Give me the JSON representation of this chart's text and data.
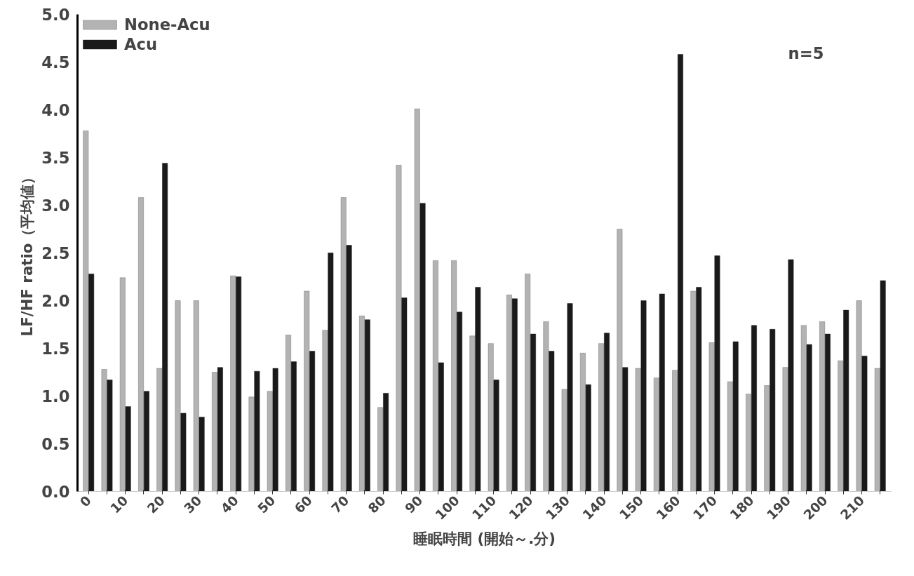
{
  "chart_data": {
    "type": "bar",
    "ylabel": "LF/HF ratio（平均値）",
    "xlabel": "睡眠時間 (開始～.分)",
    "annotations": [
      "n=5"
    ],
    "categories": [
      "0",
      null,
      "10",
      null,
      "20",
      null,
      "30",
      null,
      "40",
      null,
      "50",
      null,
      "60",
      null,
      "70",
      null,
      "80",
      null,
      "90",
      null,
      "100",
      null,
      "110",
      null,
      "120",
      null,
      "130",
      null,
      "140",
      null,
      "150",
      null,
      "160",
      null,
      "170",
      null,
      "180",
      null,
      "190",
      null,
      "200",
      null,
      "210",
      null
    ],
    "series": [
      {
        "name": "None-Acu",
        "color": "#b3b3b3",
        "values": [
          3.78,
          1.28,
          2.24,
          3.08,
          1.29,
          2.0,
          2.0,
          1.25,
          2.26,
          0.99,
          1.05,
          1.64,
          2.1,
          1.69,
          3.08,
          1.84,
          0.88,
          3.42,
          4.01,
          2.42,
          2.42,
          1.63,
          1.55,
          2.06,
          2.28,
          1.78,
          1.07,
          1.45,
          1.55,
          2.75,
          1.29,
          1.19,
          1.27,
          2.1,
          1.56,
          1.15,
          1.02,
          1.11,
          1.3,
          1.74,
          1.78,
          1.37,
          2.0,
          1.29
        ]
      },
      {
        "name": "Acu",
        "color": "#1a1a1a",
        "values": [
          2.28,
          1.17,
          0.89,
          1.05,
          3.44,
          0.82,
          0.78,
          1.3,
          2.25,
          1.26,
          1.29,
          1.36,
          1.47,
          2.5,
          2.58,
          1.8,
          1.03,
          2.03,
          3.02,
          1.35,
          1.88,
          2.14,
          1.17,
          2.02,
          1.65,
          1.47,
          1.97,
          1.12,
          1.66,
          1.3,
          2.0,
          2.07,
          4.58,
          2.14,
          2.47,
          1.57,
          1.74,
          1.7,
          2.43,
          1.54,
          1.65,
          1.9,
          1.42,
          2.21
        ]
      }
    ],
    "ylim": [
      0,
      5
    ],
    "yticks": [
      {
        "value": 0,
        "label": "0.0"
      },
      {
        "value": 0.5,
        "label": "0.5"
      },
      {
        "value": 1,
        "label": "1.0"
      },
      {
        "value": 1.5,
        "label": "1.5"
      },
      {
        "value": 2,
        "label": "2.0"
      },
      {
        "value": 2.5,
        "label": "2.5"
      },
      {
        "value": 3,
        "label": "3.0"
      },
      {
        "value": 3.5,
        "label": "3.5"
      },
      {
        "value": 4,
        "label": "4.0"
      },
      {
        "value": 4.5,
        "label": "4.5"
      },
      {
        "value": 5,
        "label": "5.0"
      }
    ],
    "legend": "top left",
    "grid": false
  }
}
